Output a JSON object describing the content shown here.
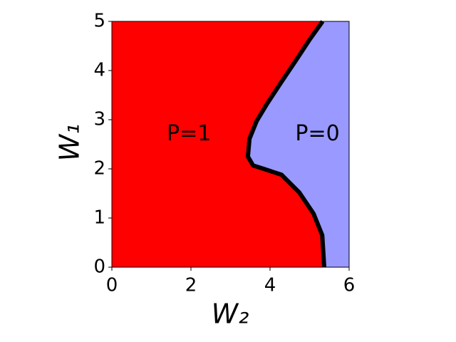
{
  "chart_data": {
    "type": "line",
    "xlabel": "W₂",
    "ylabel": "W₁",
    "annotations": [
      "P=1",
      "P=0"
    ],
    "x": [
      5.37,
      5.32,
      5.1,
      4.74,
      4.29,
      3.84,
      3.57,
      3.44,
      3.48,
      3.66,
      3.93,
      4.29,
      4.65,
      5.01,
      5.33
    ],
    "values": [
      0,
      0.65,
      1.09,
      1.52,
      1.88,
      2.0,
      2.07,
      2.25,
      2.61,
      2.97,
      3.33,
      3.77,
      4.2,
      4.64,
      5.0
    ],
    "color": "#000000",
    "left_color": "#ff0000",
    "right_color": "#9999ff",
    "xlim": [
      0,
      6
    ],
    "ylim": [
      0,
      5
    ],
    "xticks": [
      0,
      2,
      4,
      6
    ],
    "yticks": [
      0,
      1,
      2,
      3,
      4,
      5
    ]
  }
}
